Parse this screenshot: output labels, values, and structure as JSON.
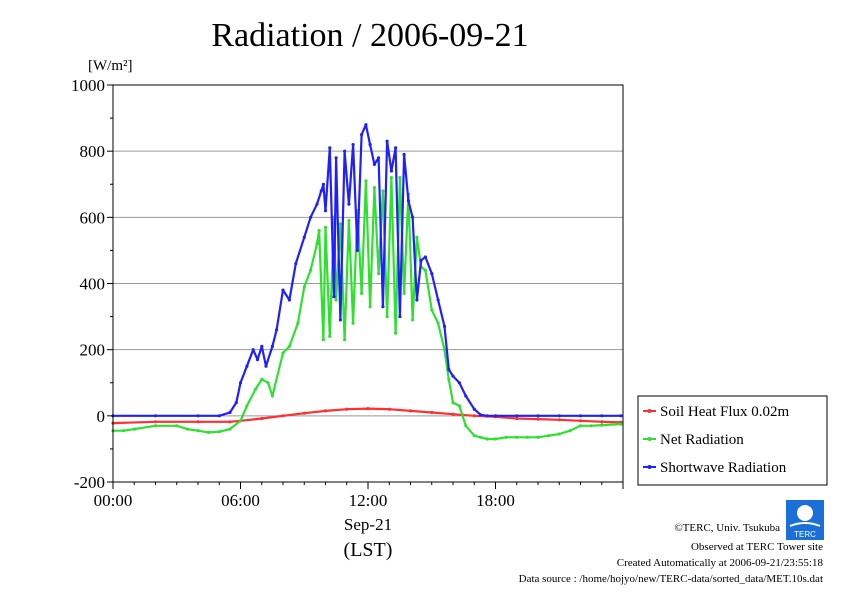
{
  "chart_data": {
    "type": "line",
    "title": "Radiation / 2006-09-21",
    "ylabel": "[W/m²]",
    "ylim": [
      -200,
      1000
    ],
    "yticks": [
      -200,
      0,
      200,
      400,
      600,
      800,
      1000
    ],
    "xlim_hours": [
      0,
      24
    ],
    "xticks": [
      {
        "hour": 0,
        "label": "00:00"
      },
      {
        "hour": 6,
        "label": "06:00"
      },
      {
        "hour": 12,
        "label": "12:00"
      },
      {
        "hour": 18,
        "label": "18:00"
      }
    ],
    "xdate": "Sep-21",
    "xunit": "(LST)",
    "grid": "horizontal",
    "legend_position": "right",
    "series": [
      {
        "name": "Soil Heat Flux 0.02m",
        "color": "#ff3030",
        "x": [
          0,
          2,
          4,
          5.5,
          6,
          7,
          8,
          9,
          10,
          11,
          12,
          13,
          14,
          15,
          16,
          17,
          18,
          19,
          20,
          21,
          22,
          23,
          23.9
        ],
        "y": [
          -22,
          -18,
          -18,
          -18,
          -15,
          -8,
          0,
          8,
          15,
          20,
          22,
          20,
          15,
          10,
          5,
          0,
          -3,
          -8,
          -10,
          -12,
          -15,
          -18,
          -20
        ]
      },
      {
        "name": "Net Radiation",
        "color": "#30e030",
        "x": [
          0,
          0.5,
          1,
          2,
          3,
          3.5,
          4,
          4.5,
          5,
          5.5,
          6,
          6.3,
          6.7,
          7,
          7.3,
          7.5,
          8,
          8.3,
          8.7,
          9,
          9.3,
          9.6,
          9.7,
          9.9,
          10,
          10.2,
          10.4,
          10.5,
          10.7,
          10.9,
          11.1,
          11.3,
          11.5,
          11.7,
          11.9,
          12.1,
          12.3,
          12.5,
          12.7,
          12.9,
          13.1,
          13.3,
          13.5,
          13.7,
          13.9,
          14.1,
          14.3,
          14.5,
          14.7,
          15,
          15.3,
          15.6,
          15.8,
          16,
          16.3,
          16.6,
          17,
          17.3,
          17.6,
          18,
          18.5,
          19,
          19.5,
          20,
          20.5,
          21,
          21.5,
          22,
          22.5,
          23,
          23.9
        ],
        "y": [
          -45,
          -45,
          -40,
          -30,
          -30,
          -40,
          -45,
          -50,
          -48,
          -40,
          -15,
          30,
          80,
          110,
          100,
          60,
          190,
          210,
          280,
          390,
          440,
          520,
          560,
          230,
          570,
          240,
          600,
          350,
          580,
          230,
          590,
          280,
          620,
          370,
          710,
          330,
          690,
          430,
          680,
          300,
          720,
          250,
          720,
          370,
          670,
          290,
          540,
          450,
          440,
          320,
          280,
          200,
          110,
          40,
          30,
          -30,
          -60,
          -65,
          -70,
          -70,
          -65,
          -65,
          -65,
          -65,
          -60,
          -55,
          -45,
          -30,
          -30,
          -28,
          -25
        ]
      },
      {
        "name": "Shortwave Radiation",
        "color": "#2020ff",
        "x": [
          0,
          2,
          4,
          5,
          5.5,
          5.8,
          6,
          6.3,
          6.6,
          6.8,
          7,
          7.2,
          7.5,
          7.7,
          8,
          8.3,
          8.6,
          9,
          9.3,
          9.6,
          9.8,
          9.9,
          10,
          10.2,
          10.4,
          10.5,
          10.7,
          10.9,
          11.1,
          11.3,
          11.5,
          11.7,
          11.9,
          12.1,
          12.3,
          12.5,
          12.7,
          12.9,
          13.1,
          13.3,
          13.5,
          13.7,
          13.9,
          14.1,
          14.3,
          14.5,
          14.7,
          15,
          15.3,
          15.6,
          15.8,
          16,
          16.3,
          16.6,
          17,
          17.3,
          17.6,
          18,
          19,
          20,
          21,
          22,
          23,
          23.9
        ],
        "y": [
          0,
          0,
          0,
          0,
          10,
          40,
          100,
          150,
          200,
          170,
          210,
          150,
          210,
          260,
          380,
          350,
          460,
          540,
          600,
          640,
          680,
          700,
          620,
          810,
          360,
          780,
          290,
          800,
          640,
          820,
          500,
          850,
          880,
          820,
          760,
          780,
          330,
          830,
          740,
          810,
          300,
          790,
          650,
          600,
          350,
          470,
          480,
          430,
          350,
          270,
          140,
          120,
          100,
          60,
          20,
          3,
          0,
          0,
          0,
          0,
          0,
          0,
          0,
          0
        ]
      }
    ]
  },
  "credits": {
    "copyright": "©TERC, Univ. Tsukuba",
    "observed": "Observed at TERC Tower site",
    "created": "Created Automatically at 2006-09-21/23:55:18",
    "source": "Data source : /home/hojyo/new/TERC-data/sorted_data/MET.10s.dat",
    "logo_text": "TERC"
  }
}
